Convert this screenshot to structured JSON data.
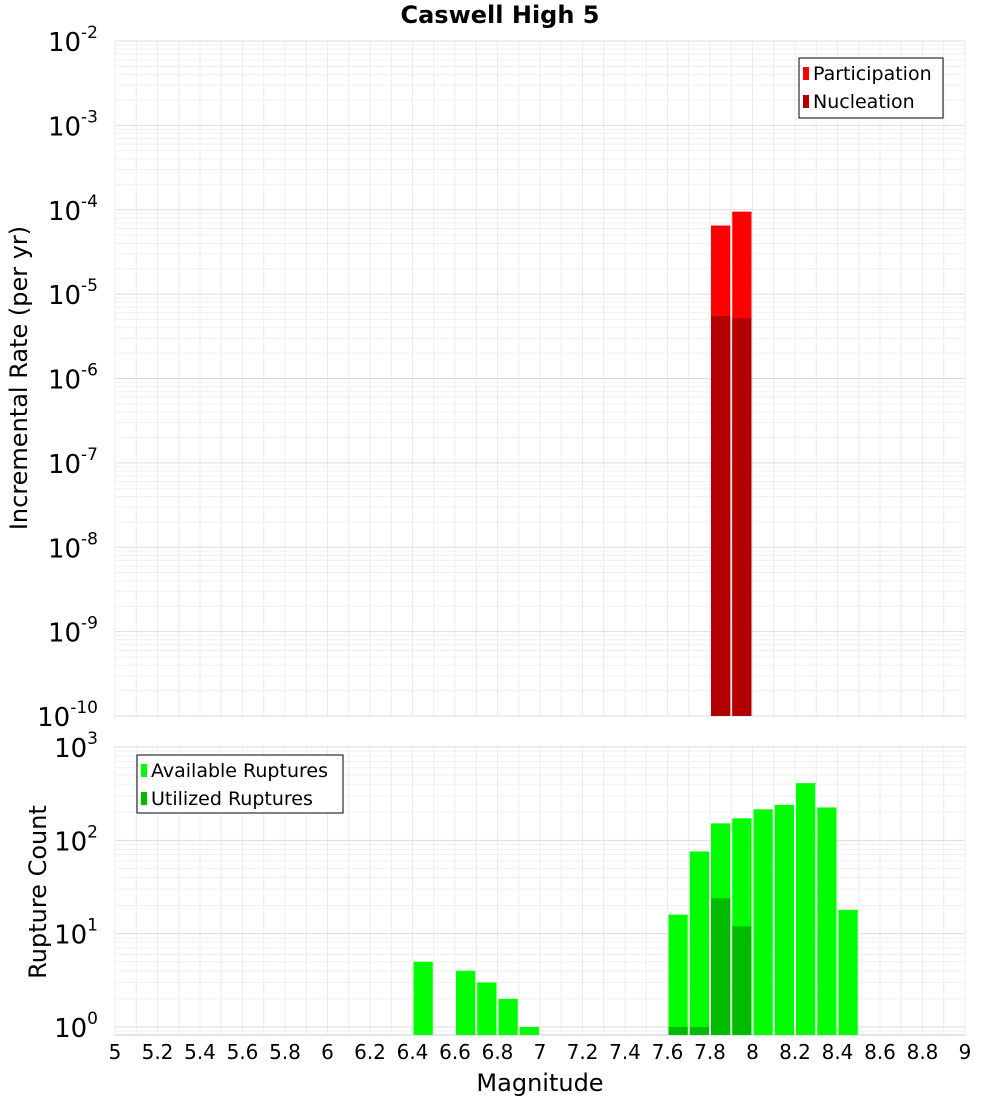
{
  "title": "Caswell High 5",
  "xlabel": "Magnitude",
  "x_ticks": [
    "5",
    "5.2",
    "5.4",
    "5.6",
    "5.8",
    "6",
    "6.2",
    "6.4",
    "6.6",
    "6.8",
    "7",
    "7.2",
    "7.4",
    "7.6",
    "7.8",
    "8",
    "8.2",
    "8.4",
    "8.6",
    "8.8",
    "9"
  ],
  "chart_data": [
    {
      "type": "bar",
      "ylabel": "Incremental Rate (per yr)",
      "y_scale": "log",
      "ylim": [
        1e-10,
        0.01
      ],
      "y_ticks": [
        {
          "base": "10",
          "exp": "-2"
        },
        {
          "base": "10",
          "exp": "-3"
        },
        {
          "base": "10",
          "exp": "-4"
        },
        {
          "base": "10",
          "exp": "-5"
        },
        {
          "base": "10",
          "exp": "-6"
        },
        {
          "base": "10",
          "exp": "-7"
        },
        {
          "base": "10",
          "exp": "-8"
        },
        {
          "base": "10",
          "exp": "-9"
        },
        {
          "base": "10",
          "exp": "-10"
        }
      ],
      "xlim": [
        5,
        9
      ],
      "bin_width": 0.1,
      "legend_position": "top-right",
      "grid": true,
      "series": [
        {
          "name": "Participation",
          "color": "#ff0000",
          "x": [
            7.85,
            7.95
          ],
          "values": [
            6.5e-05,
            9.5e-05
          ]
        },
        {
          "name": "Nucleation",
          "color": "#b30000",
          "x": [
            7.85,
            7.95
          ],
          "values": [
            5.5e-06,
            5.2e-06
          ]
        }
      ]
    },
    {
      "type": "bar",
      "ylabel": "Rupture Count",
      "y_scale": "log",
      "ylim": [
        0.82,
        1000
      ],
      "y_ticks": [
        {
          "base": "10",
          "exp": "3"
        },
        {
          "base": "10",
          "exp": "2"
        },
        {
          "base": "10",
          "exp": "1"
        },
        {
          "base": "10",
          "exp": "0"
        }
      ],
      "xlim": [
        5,
        9
      ],
      "bin_width": 0.1,
      "legend_position": "top-left",
      "grid": true,
      "series": [
        {
          "name": "Available Ruptures",
          "color": "#00ff00",
          "x": [
            6.45,
            6.65,
            6.75,
            6.85,
            6.95,
            7.65,
            7.75,
            7.85,
            7.95,
            8.05,
            8.15,
            8.25,
            8.35,
            8.45
          ],
          "values": [
            5,
            4,
            3,
            2,
            1,
            16,
            76,
            152,
            172,
            215,
            240,
            410,
            225,
            18
          ]
        },
        {
          "name": "Utilized Ruptures",
          "color": "#00bb00",
          "x": [
            7.65,
            7.75,
            7.85,
            7.95
          ],
          "values": [
            1,
            1,
            24,
            12
          ]
        }
      ]
    }
  ]
}
